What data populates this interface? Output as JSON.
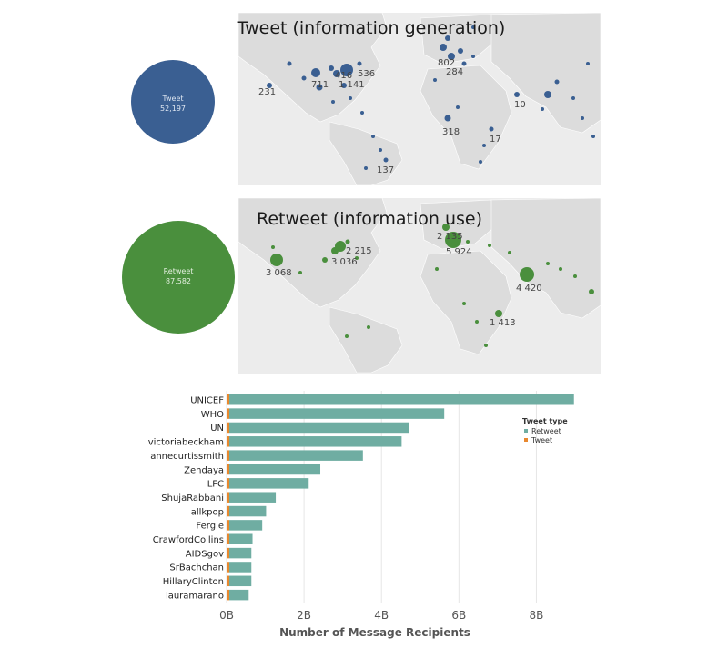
{
  "map_tweet": {
    "title": "Tweet (information generation)",
    "total_label": "Tweet",
    "total_value": "52,197",
    "color": "#3a5f92",
    "labels": [
      "231",
      "711",
      "416",
      "1 141",
      "536",
      "802",
      "284",
      "10",
      "318",
      "17",
      "137"
    ]
  },
  "map_retweet": {
    "title": "Retweet (information use)",
    "total_label": "Retweet",
    "total_value": "87,582",
    "color": "#4a8f3d",
    "labels": [
      "3 068",
      "3 036",
      "2 215",
      "2 135",
      "5 924",
      "4 420",
      "1 413"
    ]
  },
  "chart_data": {
    "type": "bar",
    "orientation": "horizontal",
    "stacked": true,
    "categories": [
      "UNICEF",
      "WHO",
      "UN",
      "victoriabeckham",
      "annecurtissmith",
      "Zendaya",
      "LFC",
      "ShujaRabbani",
      "allkpop",
      "Fergie",
      "CrawfordCollins",
      "AIDSgov",
      "SrBachchan",
      "HillaryClinton",
      "lauramarano"
    ],
    "series": [
      {
        "name": "Retweet",
        "color": "#6fada2",
        "values": [
          8.9,
          5.55,
          4.65,
          4.45,
          3.45,
          2.35,
          2.05,
          1.2,
          0.95,
          0.85,
          0.6,
          0.57,
          0.57,
          0.57,
          0.5
        ]
      },
      {
        "name": "Tweet",
        "color": "#e8882f",
        "values": [
          0.05,
          0.02,
          0.03,
          0.03,
          0.03,
          0.01,
          0.01,
          0.01,
          0.01,
          0.01,
          0.01,
          0.01,
          0.01,
          0.01,
          0.01
        ]
      }
    ],
    "xlabel": "Number of Message Recipients",
    "xticks": [
      "0B",
      "2B",
      "4B",
      "6B",
      "8B"
    ],
    "xlim": [
      0,
      9
    ],
    "legend_title": "Tweet type",
    "legend_position": "right",
    "grid": true
  }
}
